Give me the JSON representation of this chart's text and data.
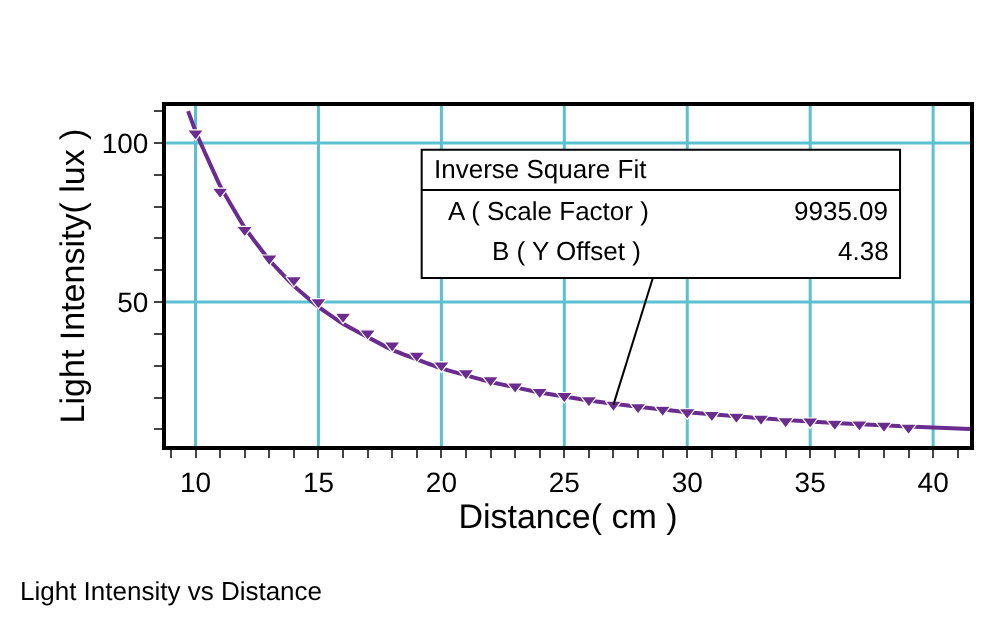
{
  "chart_data": {
    "type": "scatter",
    "title": "Light Intensity vs Distance",
    "xlabel": "Distance( cm )",
    "ylabel": "Light Intensity( lux )",
    "xlim": [
      8.8,
      41.5
    ],
    "ylim": [
      4.8,
      111.6
    ],
    "xticks": [
      {
        "value": 9,
        "label": null
      },
      10,
      {
        "value": 11,
        "label": null
      },
      {
        "value": 12,
        "label": null
      },
      {
        "value": 13,
        "label": null
      },
      {
        "value": 14,
        "label": null
      },
      15,
      {
        "value": 16,
        "label": null
      },
      {
        "value": 17,
        "label": null
      },
      {
        "value": 18,
        "label": null
      },
      {
        "value": 19,
        "label": null
      },
      20,
      {
        "value": 21,
        "label": null
      },
      {
        "value": 22,
        "label": null
      },
      {
        "value": 23,
        "label": null
      },
      {
        "value": 24,
        "label": null
      },
      25,
      {
        "value": 26,
        "label": null
      },
      {
        "value": 27,
        "label": null
      },
      {
        "value": 28,
        "label": null
      },
      {
        "value": 29,
        "label": null
      },
      30,
      {
        "value": 31,
        "label": null
      },
      {
        "value": 32,
        "label": null
      },
      {
        "value": 33,
        "label": null
      },
      {
        "value": 34,
        "label": null
      },
      35,
      {
        "value": 36,
        "label": null
      },
      {
        "value": 37,
        "label": null
      },
      {
        "value": 38,
        "label": null
      },
      {
        "value": 39,
        "label": null
      },
      40,
      {
        "value": 41,
        "label": null
      }
    ],
    "yticks": [
      {
        "value": 10,
        "label": null
      },
      {
        "value": 20,
        "label": null
      },
      {
        "value": 30,
        "label": null
      },
      {
        "value": 40,
        "label": null
      },
      50,
      {
        "value": 60,
        "label": null
      },
      {
        "value": 70,
        "label": null
      },
      {
        "value": 80,
        "label": null
      },
      {
        "value": 90,
        "label": null
      },
      100,
      {
        "value": 110,
        "label": null
      }
    ],
    "grid": true,
    "series": [
      {
        "marker": "triangle",
        "color": "#6a2c8e",
        "x": [
          10,
          11,
          12,
          13,
          14,
          15,
          16,
          17,
          18,
          19,
          20,
          21,
          22,
          23,
          24,
          25,
          26,
          27,
          28,
          29,
          30,
          31,
          32,
          33,
          34,
          35,
          36,
          37,
          38,
          39
        ],
        "values": [
          103,
          84.7,
          72.7,
          63.7,
          56.9,
          50,
          45.4,
          40.2,
          36.4,
          33.2,
          30.1,
          27.7,
          25.5,
          23.5,
          21.8,
          20.5,
          19.2,
          17.8,
          17.0,
          16.2,
          15.4,
          14.6,
          14.0,
          13.4,
          12.6,
          12.5,
          11.8,
          11.6,
          11.2,
          10.6
        ]
      },
      {
        "type": "line",
        "marker": "none",
        "color": "#6a2c8e",
        "x": [
          9.7,
          10,
          11,
          12,
          13,
          14,
          15,
          16,
          18,
          20,
          22,
          24,
          26,
          28,
          30,
          33,
          36,
          39,
          41.5
        ],
        "values": [
          110.0,
          103.7,
          86.5,
          73.4,
          63.2,
          55.1,
          48.5,
          43.2,
          35.0,
          29.2,
          24.9,
          21.6,
          19.1,
          17.1,
          15.4,
          13.5,
          12.0,
          10.9,
          10.1
        ]
      }
    ],
    "annotations": [
      "Inverse Square Fit",
      "A ( Scale Factor )",
      "9935.09",
      {
        "text": "B ( Y Offset )",
        "x": 27,
        "y": 17.8
      },
      "4.38"
    ]
  }
}
